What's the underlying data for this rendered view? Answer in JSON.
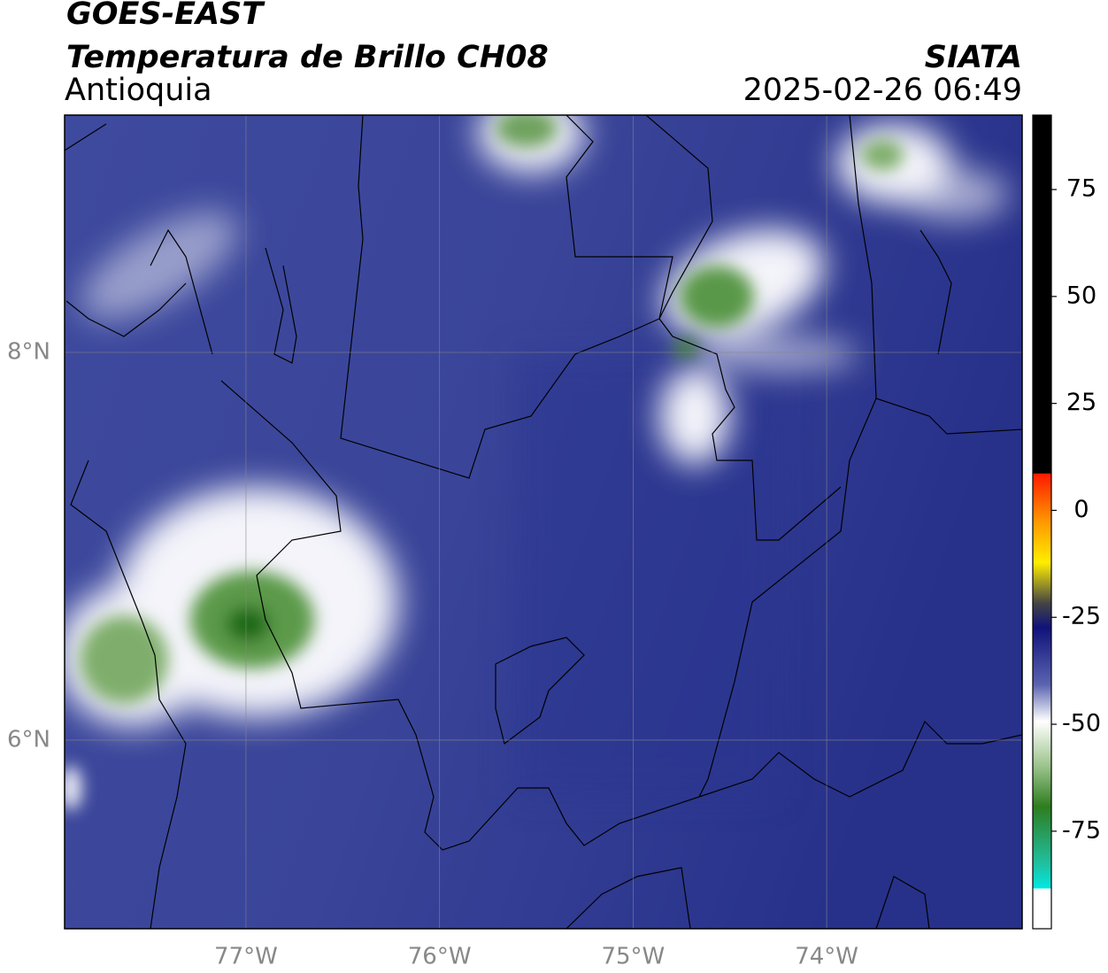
{
  "header": {
    "title": "GOES-EAST",
    "subtitle": "Temperatura de Brillo CH08",
    "region": "Antioquia",
    "source": "SIATA",
    "timestamp": "2025-02-26 06:49"
  },
  "map": {
    "lonlim": [
      -77.937,
      -72.99
    ],
    "latlim": [
      5.027,
      9.224
    ],
    "lon_ticks": [
      {
        "value": -77,
        "label": "77°W"
      },
      {
        "value": -76,
        "label": "76°W"
      },
      {
        "value": -75,
        "label": "75°W"
      },
      {
        "value": -74,
        "label": "74°W"
      }
    ],
    "lat_ticks": [
      {
        "value": 8,
        "label": "8°N"
      },
      {
        "value": 6,
        "label": "6°N"
      }
    ]
  },
  "colorbar": {
    "lim": [
      -97.8,
      92.4
    ],
    "ticks": [
      75,
      50,
      25,
      0,
      -25,
      -50,
      -75
    ]
  }
}
